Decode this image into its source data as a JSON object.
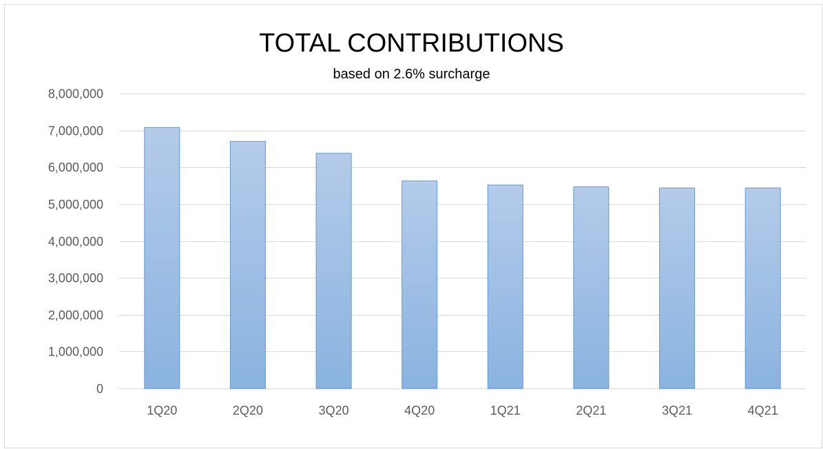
{
  "chart_data": {
    "type": "bar",
    "title": "TOTAL CONTRIBUTIONS",
    "subtitle": "based on 2.6% surcharge",
    "categories": [
      "1Q20",
      "2Q20",
      "3Q20",
      "4Q20",
      "1Q21",
      "2Q21",
      "3Q21",
      "4Q21"
    ],
    "values": [
      7080000,
      6700000,
      6380000,
      5630000,
      5520000,
      5470000,
      5440000,
      5440000
    ],
    "ylim": [
      0,
      8000000
    ],
    "yticks": [
      0,
      1000000,
      2000000,
      3000000,
      4000000,
      5000000,
      6000000,
      7000000,
      8000000
    ],
    "ytick_labels": [
      "0",
      "1,000,000",
      "2,000,000",
      "3,000,000",
      "4,000,000",
      "5,000,000",
      "6,000,000",
      "7,000,000",
      "8,000,000"
    ],
    "grid": true,
    "legend": "none",
    "colors": {
      "bar_top": "#b4cbea",
      "bar_bottom": "#8ab3e0",
      "bar_edge": "#5b9bd5",
      "grid": "#d9d9d9",
      "tick_text": "#595959"
    }
  }
}
